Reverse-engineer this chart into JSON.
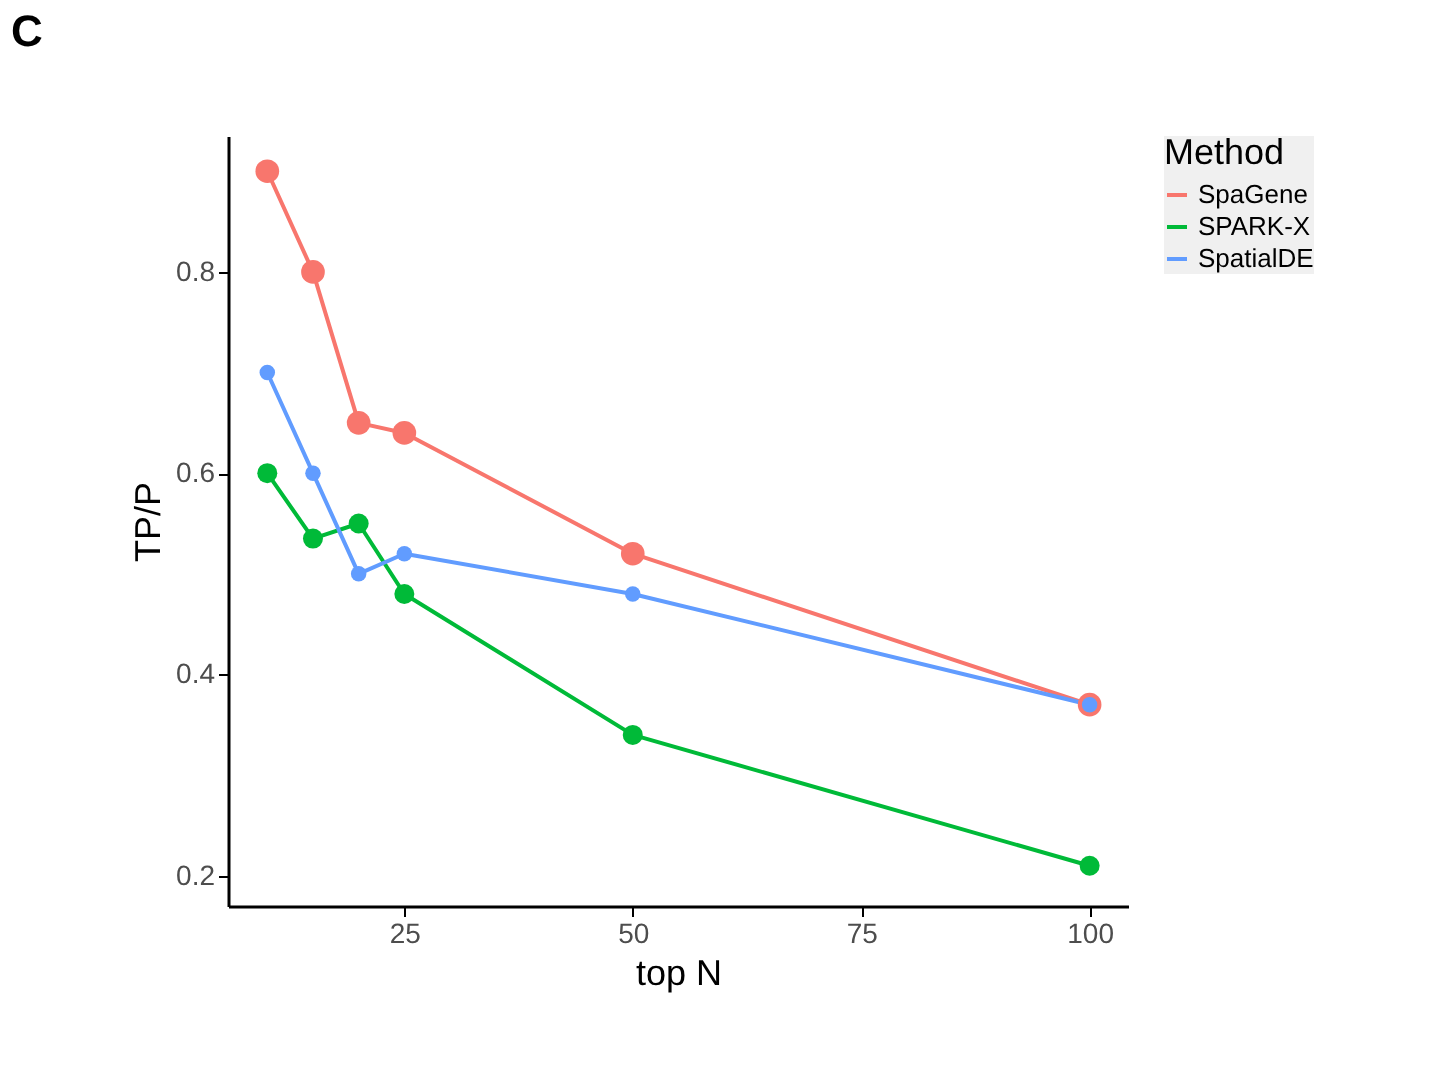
{
  "chart_data": {
    "type": "line",
    "title": "C",
    "xlabel": "top N",
    "ylabel": "TP/P",
    "legend_title": "Method",
    "x": [
      10,
      15,
      20,
      25,
      50,
      100
    ],
    "series": [
      {
        "name": "SpaGene",
        "color": "#f8766d",
        "values": [
          0.9,
          0.8,
          0.65,
          0.64,
          0.52,
          0.37
        ]
      },
      {
        "name": "SPARK-X",
        "color": "#00ba38",
        "values": [
          0.6,
          0.535,
          0.55,
          0.48,
          0.34,
          0.21
        ]
      },
      {
        "name": "SpatialDE",
        "color": "#619cff",
        "values": [
          0.7,
          0.6,
          0.5,
          0.52,
          0.48,
          0.37
        ]
      }
    ],
    "xlim": [
      5.7,
      104.2
    ],
    "ylim": [
      0.17,
      0.935
    ],
    "xticks": [
      25,
      50,
      75,
      100
    ],
    "yticks": [
      0.2,
      0.4,
      0.6,
      0.8
    ],
    "grid": false,
    "legend": "right",
    "marker": "circle",
    "line_style": "solid"
  }
}
